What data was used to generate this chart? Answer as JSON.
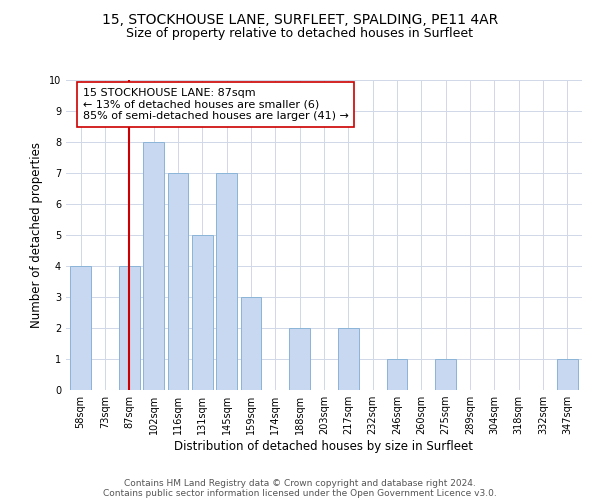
{
  "title": "15, STOCKHOUSE LANE, SURFLEET, SPALDING, PE11 4AR",
  "subtitle": "Size of property relative to detached houses in Surfleet",
  "xlabel": "Distribution of detached houses by size in Surfleet",
  "ylabel": "Number of detached properties",
  "bin_labels": [
    "58sqm",
    "73sqm",
    "87sqm",
    "102sqm",
    "116sqm",
    "131sqm",
    "145sqm",
    "159sqm",
    "174sqm",
    "188sqm",
    "203sqm",
    "217sqm",
    "232sqm",
    "246sqm",
    "260sqm",
    "275sqm",
    "289sqm",
    "304sqm",
    "318sqm",
    "332sqm",
    "347sqm"
  ],
  "bar_values": [
    4,
    0,
    4,
    8,
    7,
    5,
    7,
    3,
    0,
    2,
    0,
    2,
    0,
    1,
    0,
    1,
    0,
    0,
    0,
    0,
    1
  ],
  "bar_color": "#c8d8f0",
  "bar_edge_color": "#8ab4d8",
  "highlight_index": 2,
  "highlight_line_color": "#cc0000",
  "annotation_text": "15 STOCKHOUSE LANE: 87sqm\n← 13% of detached houses are smaller (6)\n85% of semi-detached houses are larger (41) →",
  "annotation_box_color": "#ffffff",
  "annotation_box_edge": "#cc0000",
  "ylim": [
    0,
    10
  ],
  "yticks": [
    0,
    1,
    2,
    3,
    4,
    5,
    6,
    7,
    8,
    9,
    10
  ],
  "grid_color": "#d0d8e8",
  "footer_line1": "Contains HM Land Registry data © Crown copyright and database right 2024.",
  "footer_line2": "Contains public sector information licensed under the Open Government Licence v3.0.",
  "title_fontsize": 10,
  "subtitle_fontsize": 9,
  "axis_label_fontsize": 8.5,
  "tick_fontsize": 7,
  "annotation_fontsize": 8,
  "footer_fontsize": 6.5
}
